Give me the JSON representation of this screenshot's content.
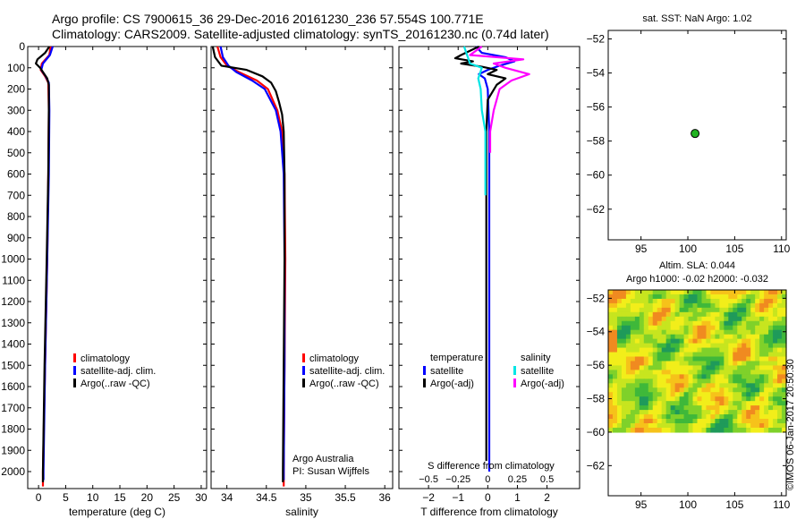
{
  "title": {
    "line1": "Argo profile: CS 7900615_36 29-Dec-2016 20161230_236 57.554S 100.771E",
    "line2": "Climatology: CARS2009. Satellite-adjusted climatology: synTS_20161230.nc (0.74d later)"
  },
  "colors": {
    "climatology": "#ff0000",
    "satellite": "#0000ff",
    "argo": "#000000",
    "s_satellite": "#00e5e5",
    "s_argo": "#ff00ff"
  },
  "chart_data": [
    {
      "type": "line",
      "id": "temperature",
      "xlabel": "temperature (deg C)",
      "xlim": [
        -2,
        31
      ],
      "ylim": [
        0,
        2080
      ],
      "xticks": [
        0,
        5,
        10,
        15,
        20,
        25,
        30
      ],
      "xtick_labels": [
        "0",
        "5",
        "10",
        "15",
        "20",
        "25",
        "30"
      ],
      "yticks": [
        0,
        100,
        200,
        300,
        400,
        500,
        600,
        700,
        800,
        900,
        1000,
        1100,
        1200,
        1300,
        1400,
        1500,
        1600,
        1700,
        1800,
        1900,
        2000
      ],
      "ytick_labels": [
        "0",
        "100",
        "200",
        "300",
        "400",
        "500",
        "600",
        "700",
        "800",
        "900",
        "1000",
        "1100",
        "1200",
        "1300",
        "1400",
        "1500",
        "1600",
        "1700",
        "1800",
        "1900",
        "2000"
      ],
      "legend": [
        "climatology",
        "satellite-adj. clim.",
        "Argo(..raw -QC)"
      ],
      "series": [
        {
          "name": "climatology",
          "depth": [
            0,
            40,
            80,
            110,
            140,
            170,
            300,
            600,
            1000,
            1500,
            2000,
            2070
          ],
          "values": [
            2.2,
            2.0,
            0.6,
            0.4,
            1.2,
            1.8,
            1.9,
            1.8,
            1.6,
            1.2,
            0.8,
            0.8
          ]
        },
        {
          "name": "satellite-adj. clim.",
          "depth": [
            0,
            40,
            80,
            110,
            140,
            170,
            300,
            600,
            1000,
            1500,
            2000,
            2040
          ],
          "values": [
            2.6,
            2.1,
            0.8,
            0.5,
            1.3,
            1.9,
            2.0,
            1.9,
            1.6,
            1.2,
            0.9,
            0.9
          ]
        },
        {
          "name": "Argo(..raw -QC)",
          "depth": [
            0,
            30,
            60,
            80,
            100,
            120,
            150,
            180,
            300,
            600,
            1000,
            1500,
            2000,
            2050
          ],
          "values": [
            2.0,
            1.2,
            -0.2,
            -0.5,
            0.3,
            0.8,
            1.6,
            1.9,
            1.9,
            1.8,
            1.5,
            1.1,
            0.8,
            0.8
          ]
        }
      ]
    },
    {
      "type": "line",
      "id": "salinity",
      "xlabel": "salinity",
      "xlim": [
        33.8,
        36.1
      ],
      "ylim": [
        0,
        2080
      ],
      "xticks": [
        34,
        34.5,
        35,
        35.5,
        36
      ],
      "xtick_labels": [
        "34",
        "34.5",
        "35",
        "35.5",
        "36"
      ],
      "legend": [
        "climatology",
        "satellite-adj. clim.",
        "Argo(..raw -QC)"
      ],
      "annotation": [
        "Argo Australia",
        "PI: Susan Wijffels"
      ],
      "series": [
        {
          "name": "climatology",
          "depth": [
            0,
            50,
            90,
            120,
            160,
            200,
            300,
            400,
            600,
            1000,
            1500,
            2000,
            2070
          ],
          "values": [
            33.88,
            33.92,
            34.0,
            34.15,
            34.38,
            34.52,
            34.64,
            34.7,
            34.73,
            34.74,
            34.73,
            34.72,
            34.72
          ]
        },
        {
          "name": "satellite-adj. clim.",
          "depth": [
            0,
            50,
            90,
            120,
            160,
            200,
            300,
            400,
            600,
            1000,
            1500,
            2000,
            2040
          ],
          "values": [
            33.92,
            33.95,
            34.02,
            34.12,
            34.32,
            34.48,
            34.62,
            34.68,
            34.72,
            34.73,
            34.73,
            34.72,
            34.72
          ]
        },
        {
          "name": "Argo(..raw -QC)",
          "depth": [
            0,
            50,
            90,
            110,
            140,
            170,
            210,
            260,
            320,
            400,
            600,
            1000,
            1500,
            2000,
            2050
          ],
          "values": [
            33.82,
            33.85,
            33.93,
            34.25,
            34.45,
            34.56,
            34.62,
            34.66,
            34.7,
            34.72,
            34.73,
            34.73,
            34.72,
            34.71,
            34.71
          ]
        }
      ]
    },
    {
      "type": "line",
      "id": "difference",
      "xlabel": "T difference from climatology",
      "xlabel_top": "S difference from climatology",
      "xlim": [
        -3,
        3.1
      ],
      "ylim": [
        0,
        2080
      ],
      "xticks": [
        -2,
        -1,
        0,
        1,
        2
      ],
      "xtick_labels": [
        "−2",
        "−1",
        "0",
        "1",
        "2"
      ],
      "stick_labels": [
        "−0.5",
        "−0.25",
        "0",
        "0.25",
        "0.5"
      ],
      "legend_headers": [
        "temperature",
        "salinity"
      ],
      "legend": [
        "satellite",
        "Argo(-adj)",
        "satellite",
        "Argo(-adj)"
      ],
      "series": [
        {
          "name": "T satellite",
          "depth": [
            0,
            30,
            50,
            70,
            90,
            110,
            130,
            150,
            200,
            400,
            800,
            1500,
            2000
          ],
          "values": [
            -0.4,
            -0.2,
            0.6,
            0.9,
            0.4,
            0.0,
            -0.3,
            -0.1,
            0.0,
            0.05,
            0.05,
            0.05,
            0.05
          ]
        },
        {
          "name": "T Argo(-adj)",
          "depth": [
            0,
            40,
            55,
            70,
            80,
            95,
            110,
            130,
            150,
            180,
            250,
            400,
            800,
            1500,
            1950
          ],
          "values": [
            -0.3,
            -0.9,
            -1.1,
            -0.5,
            -0.9,
            -0.2,
            0.3,
            0.0,
            0.6,
            0.3,
            0.0,
            -0.05,
            -0.05,
            -0.05,
            -0.05
          ]
        },
        {
          "name": "S satellite",
          "depth": [
            0,
            80,
            100,
            150,
            200,
            300,
            400,
            600,
            700
          ],
          "values": [
            -0.2,
            -0.15,
            -0.05,
            -0.08,
            -0.06,
            -0.05,
            -0.02,
            -0.02,
            -0.02
          ]
        },
        {
          "name": "S Argo(-adj)",
          "depth": [
            0,
            40,
            60,
            80,
            100,
            130,
            160,
            200,
            300,
            400,
            500
          ],
          "values": [
            -0.05,
            -0.15,
            0.3,
            0.05,
            0.15,
            0.35,
            0.2,
            0.1,
            0.05,
            0.02,
            0.02
          ]
        }
      ]
    },
    {
      "type": "scatter",
      "id": "sst_map",
      "title": "sat. SST: NaN Argo: 1.02",
      "xlim": [
        91.5,
        110.5
      ],
      "ylim": [
        -63.8,
        -51.5
      ],
      "xticks": [
        95,
        100,
        105,
        110
      ],
      "xtick_labels": [
        "95",
        "100",
        "105",
        "110"
      ],
      "yticks": [
        -62,
        -60,
        -58,
        -56,
        -54,
        -52
      ],
      "ytick_labels": [
        "−62",
        "−60",
        "−58",
        "−56",
        "−54",
        "−52"
      ],
      "points": [
        {
          "x": 100.771,
          "y": -57.554
        }
      ]
    },
    {
      "type": "heatmap",
      "id": "sla_map",
      "title1": "Altim. SLA: 0.044",
      "title2": "Argo h1000: -0.02 h2000: -0.032",
      "xlim": [
        91.5,
        110.5
      ],
      "ylim": [
        -63.8,
        -51.5
      ],
      "data_ylim": [
        -60,
        -51.5
      ],
      "xticks": [
        95,
        100,
        105,
        110
      ],
      "xtick_labels": [
        "95",
        "100",
        "105",
        "110"
      ],
      "yticks": [
        -62,
        -60,
        -58,
        -56,
        -54,
        -52
      ],
      "ytick_labels": [
        "−62",
        "−60",
        "−58",
        "−56",
        "−54",
        "−52"
      ]
    }
  ],
  "side_stamp": "©IMOS 06-Jan-2017 20:50:30"
}
